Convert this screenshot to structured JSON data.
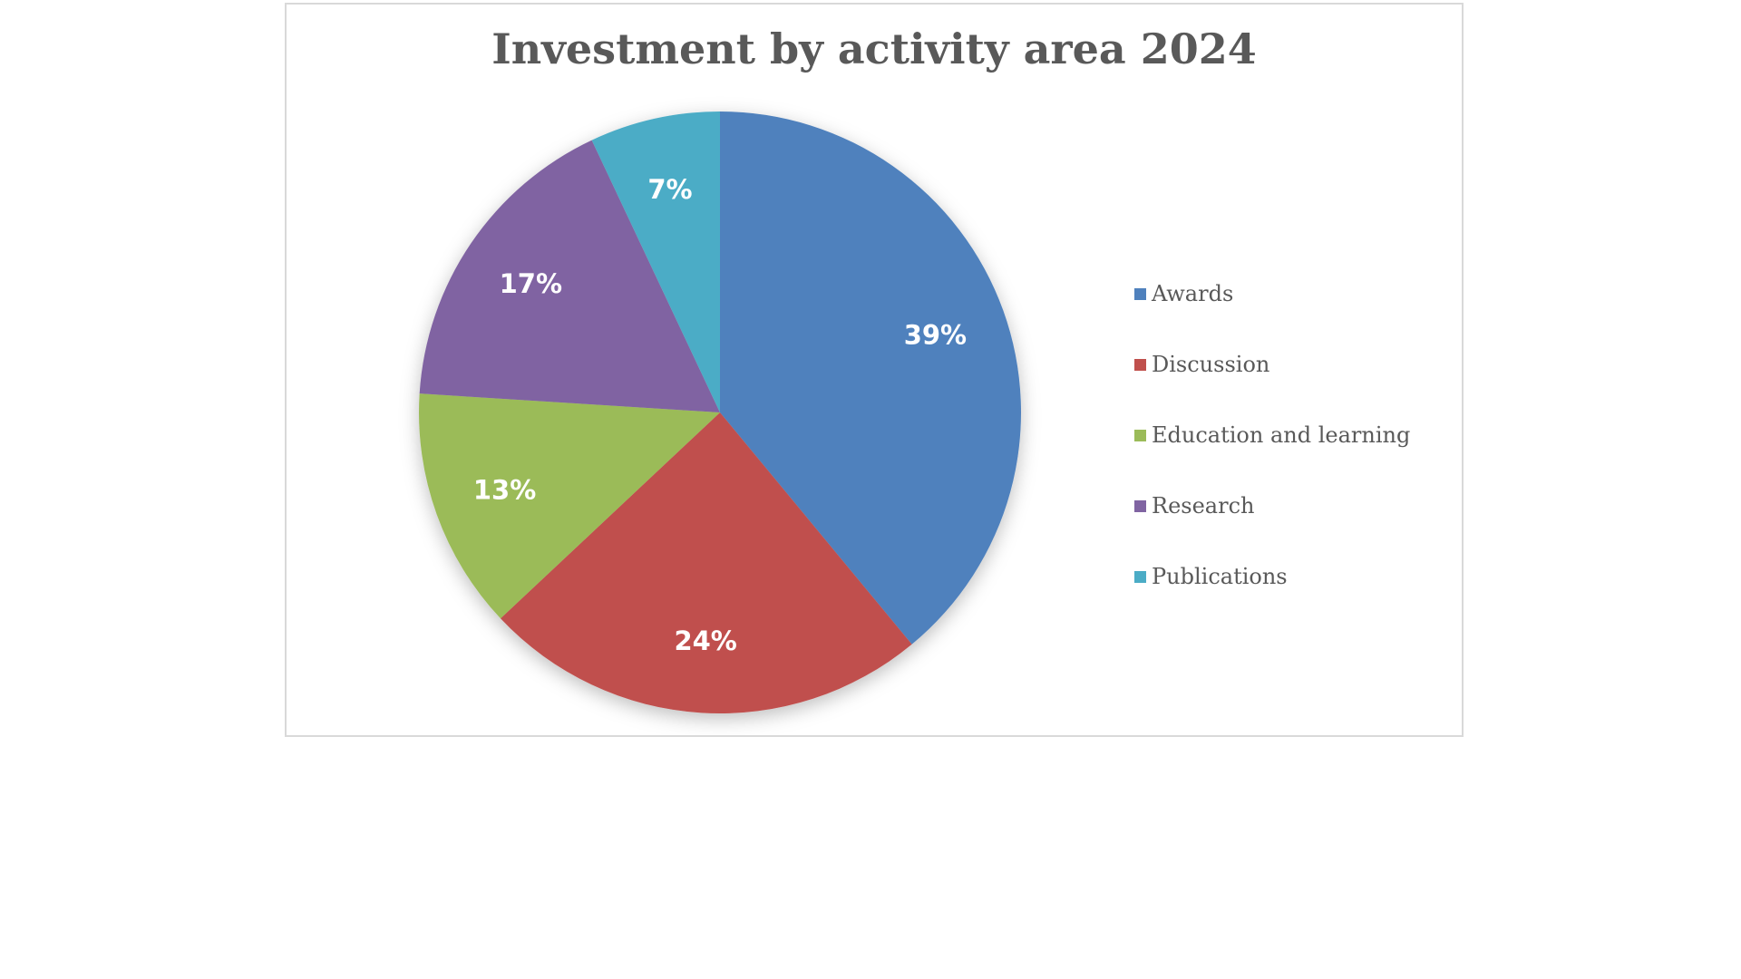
{
  "chart_data": {
    "type": "pie",
    "title": "Investment by activity area 2024",
    "start_angle_deg": 0,
    "direction": "clockwise",
    "legend_position": "right",
    "slices": [
      {
        "label": "Awards",
        "value": 39,
        "display": "39%",
        "color": "#4f81bd"
      },
      {
        "label": "Discussion",
        "value": 24,
        "display": "24%",
        "color": "#c0504d"
      },
      {
        "label": "Education and learning",
        "value": 13,
        "display": "13%",
        "color": "#9bbb59"
      },
      {
        "label": "Research",
        "value": 17,
        "display": "17%",
        "color": "#8064a2"
      },
      {
        "label": "Publications",
        "value": 7,
        "display": "7%",
        "color": "#4bacc6"
      }
    ]
  }
}
